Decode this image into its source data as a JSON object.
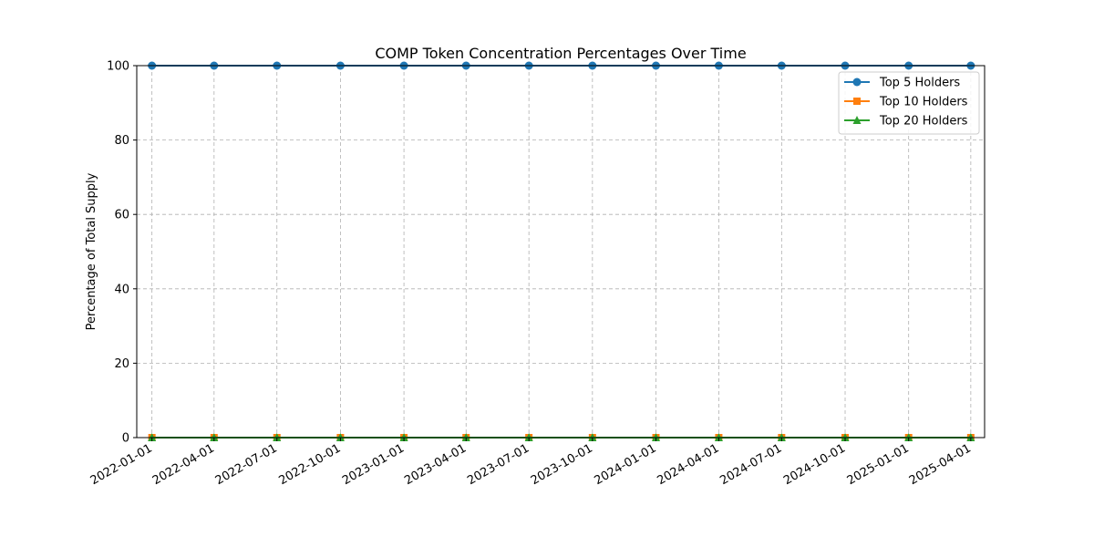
{
  "chart_data": {
    "type": "line",
    "title": "COMP Token Concentration Percentages Over Time",
    "xlabel": "",
    "ylabel": "Percentage of Total Supply",
    "ylim": [
      0,
      100
    ],
    "yticks": [
      0,
      20,
      40,
      60,
      80,
      100
    ],
    "grid": true,
    "legend_position": "top-right",
    "x": [
      "2022-01-01",
      "2022-04-01",
      "2022-07-01",
      "2022-10-01",
      "2023-01-01",
      "2023-04-01",
      "2023-07-01",
      "2023-10-01",
      "2024-01-01",
      "2024-04-01",
      "2024-07-01",
      "2024-10-01",
      "2025-01-01",
      "2025-04-01"
    ],
    "xticks": [
      "2022-01-01",
      "2022-04-01",
      "2022-07-01",
      "2022-10-01",
      "2023-01-01",
      "2023-04-01",
      "2023-07-01",
      "2023-10-01",
      "2024-01-01",
      "2024-04-01",
      "2024-07-01",
      "2024-10-01",
      "2025-01-01",
      "2025-04-01"
    ],
    "xlim": [
      "2021-12-10",
      "2025-04-21"
    ],
    "series": [
      {
        "name": "Top 5 Holders",
        "color": "#1f77b4",
        "marker": "circle",
        "values": [
          100,
          100,
          100,
          100,
          100,
          100,
          100,
          100,
          100,
          100,
          100,
          100,
          100,
          100
        ]
      },
      {
        "name": "Top 10 Holders",
        "color": "#ff7f0e",
        "marker": "square",
        "values": [
          0,
          0,
          0,
          0,
          0,
          0,
          0,
          0,
          0,
          0,
          0,
          0,
          0,
          0
        ]
      },
      {
        "name": "Top 20 Holders",
        "color": "#2ca02c",
        "marker": "triangle",
        "values": [
          0,
          0,
          0,
          0,
          0,
          0,
          0,
          0,
          0,
          0,
          0,
          0,
          0,
          0
        ]
      }
    ]
  }
}
